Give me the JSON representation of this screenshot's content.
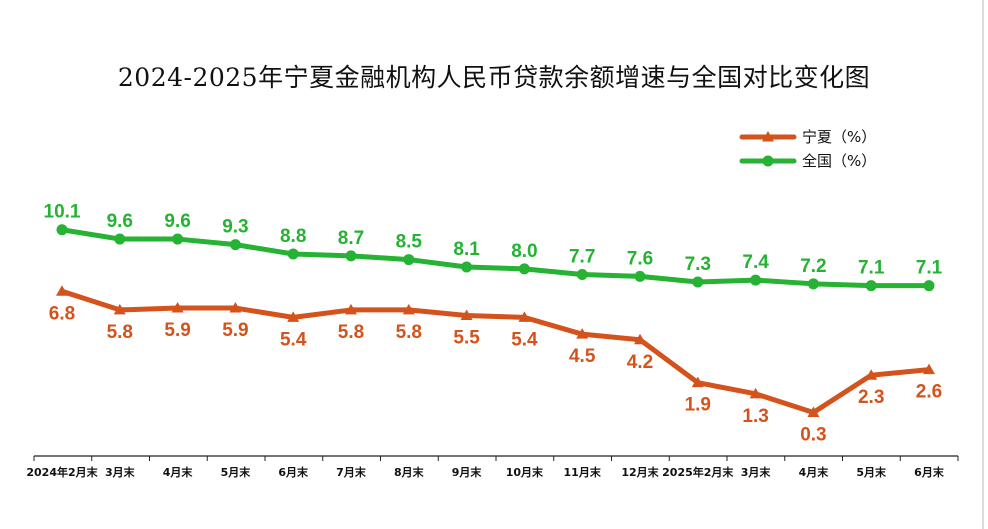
{
  "chart_data": {
    "type": "line",
    "title": "2024-2025年宁夏金融机构人民币贷款余额增速与全国对比变化图",
    "categories": [
      "2024年2月末",
      "3月末",
      "4月末",
      "5月末",
      "6月末",
      "7月末",
      "8月末",
      "9月末",
      "10月末",
      "11月末",
      "12月末",
      "2025年2月末",
      "3月末",
      "4月末",
      "5月末",
      "6月末"
    ],
    "series": [
      {
        "name": "宁夏（%）",
        "color": "#d4531c",
        "marker": "triangle",
        "values": [
          6.8,
          5.8,
          5.9,
          5.9,
          5.4,
          5.8,
          5.8,
          5.5,
          5.4,
          4.5,
          4.2,
          1.9,
          1.3,
          0.3,
          2.3,
          2.6
        ],
        "labels": [
          "6.8",
          "5.8",
          "5.9",
          "5.9",
          "5.4",
          "5.8",
          "5.8",
          "5.5",
          "5.4",
          "4.5",
          "4.2",
          "1.9",
          "1.3",
          "0.3",
          "2.3",
          "2.6"
        ],
        "label_position": "below"
      },
      {
        "name": "全国（%）",
        "color": "#26b233",
        "marker": "circle",
        "values": [
          10.1,
          9.6,
          9.6,
          9.3,
          8.8,
          8.7,
          8.5,
          8.1,
          8.0,
          7.7,
          7.6,
          7.3,
          7.4,
          7.2,
          7.1,
          7.1
        ],
        "labels": [
          "10.1",
          "9.6",
          "9.6",
          "9.3",
          "8.8",
          "8.7",
          "8.5",
          "8.1",
          "8.0",
          "7.7",
          "7.6",
          "7.3",
          "7.4",
          "7.2",
          "7.1",
          "7.1"
        ],
        "label_position": "above"
      }
    ],
    "legend_position": "top-right",
    "grid": false
  }
}
